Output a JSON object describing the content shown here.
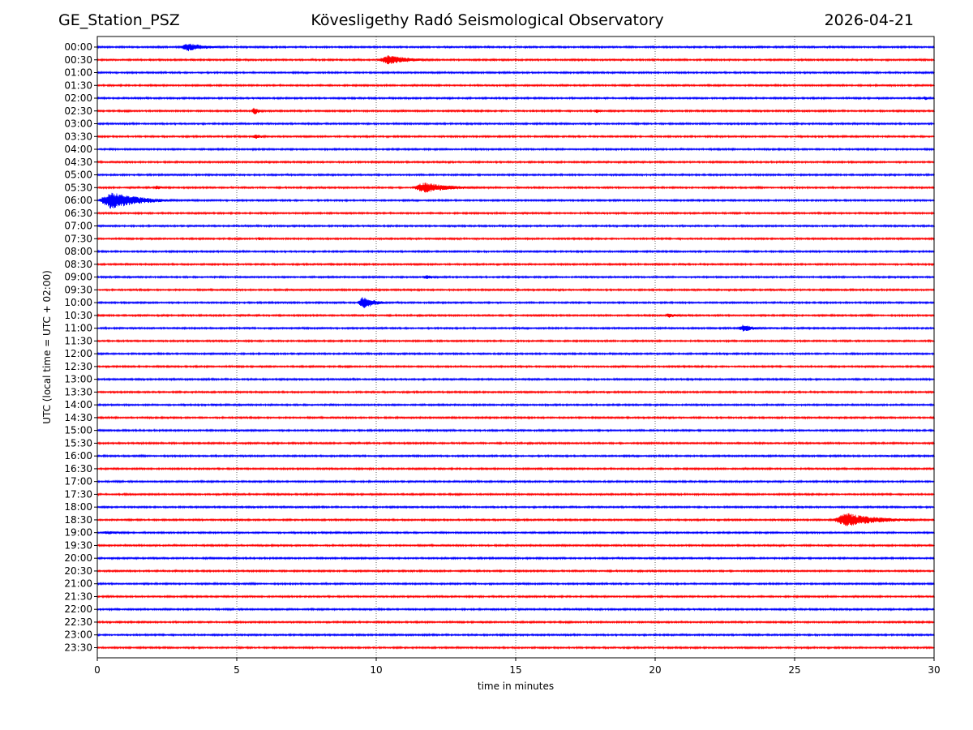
{
  "header": {
    "station": "GE_Station_PSZ",
    "observatory": "Kövesligethy Radó Seismological Observatory",
    "date": "2026-04-21"
  },
  "chart_data": {
    "type": "line",
    "chart_kind": "helicorder",
    "xlabel": "time in minutes",
    "ylabel": "UTC (local time = UTC + 02:00)",
    "xlim": [
      0,
      30
    ],
    "x_ticks": [
      0,
      5,
      10,
      15,
      20,
      25,
      30
    ],
    "grid": "vertical dotted lines at 5-minute ticks",
    "colors": [
      "#0000ff",
      "#ff0000"
    ],
    "rows": [
      {
        "label": "00:00",
        "color": "#0000ff",
        "events": [
          {
            "start_min": 2.9,
            "end_min": 5.2,
            "amplitude": 0.35
          }
        ]
      },
      {
        "label": "00:30",
        "color": "#ff0000",
        "events": [
          {
            "start_min": 10.0,
            "end_min": 12.8,
            "amplitude": 0.4
          }
        ]
      },
      {
        "label": "01:00",
        "color": "#0000ff",
        "events": []
      },
      {
        "label": "01:30",
        "color": "#ff0000",
        "events": []
      },
      {
        "label": "02:00",
        "color": "#0000ff",
        "events": [
          {
            "start_min": 29.6,
            "end_min": 30.0,
            "amplitude": 0.2
          }
        ]
      },
      {
        "label": "02:30",
        "color": "#ff0000",
        "events": [
          {
            "start_min": 5.5,
            "end_min": 6.2,
            "amplitude": 0.35
          },
          {
            "start_min": 17.8,
            "end_min": 18.4,
            "amplitude": 0.2
          }
        ]
      },
      {
        "label": "03:00",
        "color": "#0000ff",
        "events": []
      },
      {
        "label": "03:30",
        "color": "#ff0000",
        "events": [
          {
            "start_min": 5.5,
            "end_min": 6.6,
            "amplitude": 0.2
          }
        ]
      },
      {
        "label": "04:00",
        "color": "#0000ff",
        "events": []
      },
      {
        "label": "04:30",
        "color": "#ff0000",
        "events": []
      },
      {
        "label": "05:00",
        "color": "#0000ff",
        "events": []
      },
      {
        "label": "05:30",
        "color": "#ff0000",
        "events": [
          {
            "start_min": 2.0,
            "end_min": 2.8,
            "amplitude": 0.2
          },
          {
            "start_min": 11.2,
            "end_min": 14.5,
            "amplitude": 0.45
          }
        ]
      },
      {
        "label": "06:00",
        "color": "#0000ff",
        "events": [
          {
            "start_min": 0.0,
            "end_min": 3.3,
            "amplitude": 0.75
          }
        ]
      },
      {
        "label": "06:30",
        "color": "#ff0000",
        "events": []
      },
      {
        "label": "07:00",
        "color": "#0000ff",
        "events": []
      },
      {
        "label": "07:30",
        "color": "#ff0000",
        "events": [
          {
            "start_min": 5.7,
            "end_min": 6.3,
            "amplitude": 0.15
          }
        ]
      },
      {
        "label": "08:00",
        "color": "#0000ff",
        "events": []
      },
      {
        "label": "08:30",
        "color": "#ff0000",
        "events": [
          {
            "start_min": 8.3,
            "end_min": 8.8,
            "amplitude": 0.12
          }
        ]
      },
      {
        "label": "09:00",
        "color": "#0000ff",
        "events": [
          {
            "start_min": 11.6,
            "end_min": 12.8,
            "amplitude": 0.2
          }
        ]
      },
      {
        "label": "09:30",
        "color": "#ff0000",
        "events": []
      },
      {
        "label": "10:00",
        "color": "#0000ff",
        "events": [
          {
            "start_min": 9.3,
            "end_min": 10.7,
            "amplitude": 0.55
          }
        ]
      },
      {
        "label": "10:30",
        "color": "#ff0000",
        "events": [
          {
            "start_min": 20.3,
            "end_min": 21.5,
            "amplitude": 0.2
          }
        ]
      },
      {
        "label": "11:00",
        "color": "#0000ff",
        "events": [
          {
            "start_min": 22.9,
            "end_min": 24.5,
            "amplitude": 0.3
          }
        ]
      },
      {
        "label": "11:30",
        "color": "#ff0000",
        "events": []
      },
      {
        "label": "12:00",
        "color": "#0000ff",
        "events": []
      },
      {
        "label": "12:30",
        "color": "#ff0000",
        "events": []
      },
      {
        "label": "13:00",
        "color": "#0000ff",
        "events": []
      },
      {
        "label": "13:30",
        "color": "#ff0000",
        "events": []
      },
      {
        "label": "14:00",
        "color": "#0000ff",
        "events": []
      },
      {
        "label": "14:30",
        "color": "#ff0000",
        "events": []
      },
      {
        "label": "15:00",
        "color": "#0000ff",
        "events": []
      },
      {
        "label": "15:30",
        "color": "#ff0000",
        "events": []
      },
      {
        "label": "16:00",
        "color": "#0000ff",
        "events": []
      },
      {
        "label": "16:30",
        "color": "#ff0000",
        "events": []
      },
      {
        "label": "17:00",
        "color": "#0000ff",
        "events": []
      },
      {
        "label": "17:30",
        "color": "#ff0000",
        "events": []
      },
      {
        "label": "18:00",
        "color": "#0000ff",
        "events": []
      },
      {
        "label": "18:30",
        "color": "#ff0000",
        "events": [
          {
            "start_min": 26.3,
            "end_min": 30.0,
            "amplitude": 0.6
          }
        ]
      },
      {
        "label": "19:00",
        "color": "#0000ff",
        "events": [
          {
            "start_min": 0.0,
            "end_min": 2.5,
            "amplitude": 0.15
          }
        ]
      },
      {
        "label": "19:30",
        "color": "#ff0000",
        "events": [
          {
            "start_min": 26.0,
            "end_min": 26.8,
            "amplitude": 0.12
          }
        ]
      },
      {
        "label": "20:00",
        "color": "#0000ff",
        "events": []
      },
      {
        "label": "20:30",
        "color": "#ff0000",
        "events": []
      },
      {
        "label": "21:00",
        "color": "#0000ff",
        "events": [
          {
            "start_min": 17.5,
            "end_min": 18.2,
            "amplitude": 0.12
          }
        ]
      },
      {
        "label": "21:30",
        "color": "#ff0000",
        "events": []
      },
      {
        "label": "22:00",
        "color": "#0000ff",
        "events": []
      },
      {
        "label": "22:30",
        "color": "#ff0000",
        "events": []
      },
      {
        "label": "23:00",
        "color": "#0000ff",
        "events": []
      },
      {
        "label": "23:30",
        "color": "#ff0000",
        "events": []
      }
    ]
  }
}
